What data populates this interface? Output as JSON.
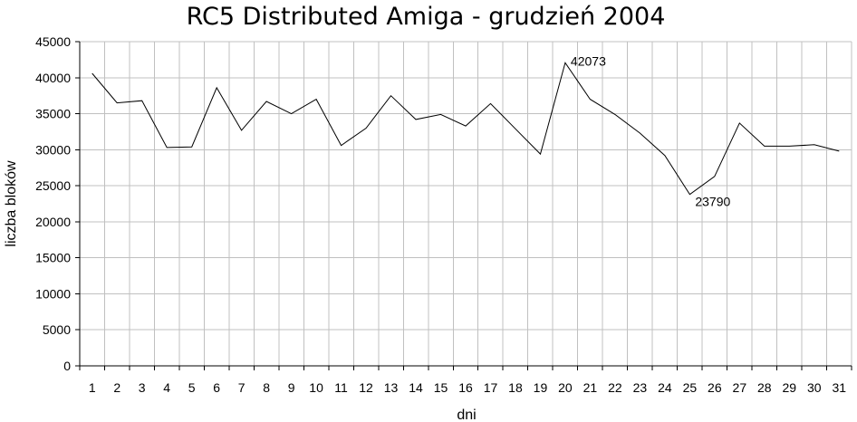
{
  "chart_data": {
    "type": "line",
    "title": "RC5 Distributed Amiga - grudzień 2004",
    "xlabel": "dni",
    "ylabel": "liczba bloków",
    "categories": [
      "1",
      "2",
      "3",
      "4",
      "5",
      "6",
      "7",
      "8",
      "9",
      "10",
      "11",
      "12",
      "13",
      "14",
      "15",
      "16",
      "17",
      "18",
      "19",
      "20",
      "21",
      "22",
      "23",
      "24",
      "25",
      "26",
      "27",
      "28",
      "29",
      "30",
      "31"
    ],
    "series": [
      {
        "values": [
          40600,
          36500,
          36800,
          30300,
          30400,
          38600,
          32700,
          36700,
          35000,
          37000,
          30600,
          33000,
          37500,
          34200,
          34900,
          33300,
          36400,
          32900,
          29400,
          42073,
          37000,
          34900,
          32300,
          29200,
          23790,
          26300,
          33700,
          30500,
          30500,
          30700,
          29800
        ]
      }
    ],
    "yticks": [
      "0",
      "5000",
      "10000",
      "15000",
      "20000",
      "25000",
      "30000",
      "35000",
      "40000",
      "45000"
    ],
    "ylim": [
      0,
      45000
    ],
    "grid": true,
    "annotations": [
      {
        "label": "42073",
        "category": "20",
        "value": 42073
      },
      {
        "label": "23790",
        "category": "25",
        "value": 23790
      }
    ],
    "colors": {
      "line": "#000000",
      "grid": "#c0c0c0",
      "axis": "#000000"
    }
  }
}
